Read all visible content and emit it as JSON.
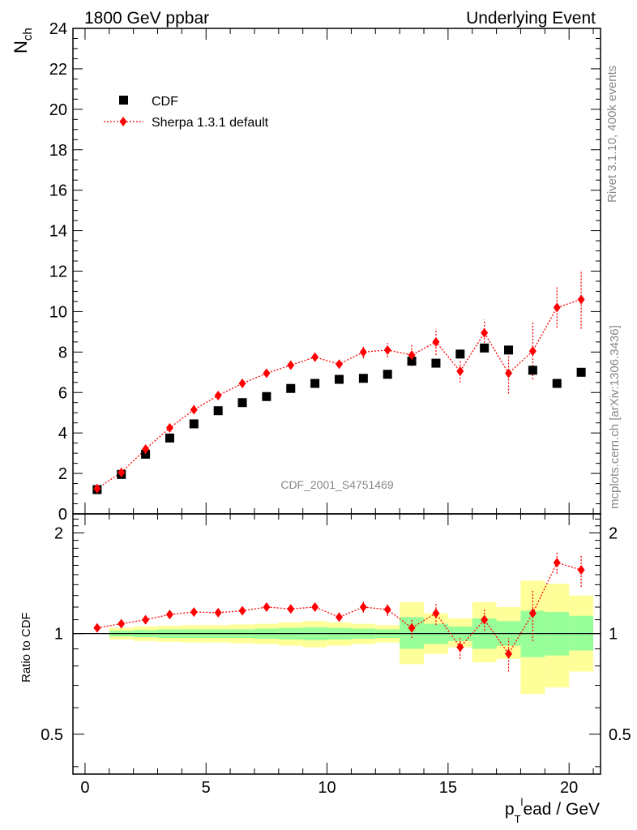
{
  "header": {
    "left": "1800 GeV ppbar",
    "right": "Underlying Event"
  },
  "side_text": {
    "upper": "Rivet 3.1.10,  400k events",
    "lower": "mcplots.cern.ch [arXiv:1306.3436]"
  },
  "watermark": "CDF_2001_S4751469",
  "colors": {
    "data": "#000000",
    "mc": "#ff0000",
    "band_inner": "#99ff99",
    "band_outer": "#ffff99"
  },
  "chart_data": [
    {
      "type": "scatter",
      "panel": "main",
      "ylabel": "N_ch",
      "xlim": [
        -0.5,
        21.3
      ],
      "ylim": [
        0,
        24
      ],
      "yticks": [
        0,
        2,
        4,
        6,
        8,
        10,
        12,
        14,
        16,
        18,
        20,
        22,
        24
      ],
      "legend_position": "top-left",
      "legend": [
        "CDF",
        "Sherpa 1.3.1 default"
      ],
      "x": [
        0.5,
        1.5,
        2.5,
        3.5,
        4.5,
        5.5,
        6.5,
        7.5,
        8.5,
        9.5,
        10.5,
        11.5,
        12.5,
        13.5,
        14.5,
        15.5,
        16.5,
        17.5,
        18.5,
        19.5,
        20.5
      ],
      "series": [
        {
          "name": "CDF",
          "marker": "square",
          "values": [
            1.2,
            1.95,
            2.95,
            3.75,
            4.45,
            5.1,
            5.5,
            5.8,
            6.2,
            6.45,
            6.65,
            6.7,
            6.9,
            7.55,
            7.45,
            7.9,
            8.2,
            8.1,
            7.1,
            6.45,
            7.0
          ]
        },
        {
          "name": "Sherpa 1.3.1 default",
          "marker": "diamond",
          "line": "dotted",
          "values": [
            1.25,
            2.05,
            3.2,
            4.25,
            5.15,
            5.85,
            6.45,
            6.95,
            7.35,
            7.75,
            7.4,
            8.0,
            8.1,
            7.85,
            8.5,
            7.05,
            8.95,
            6.95,
            8.05,
            10.2,
            10.6
          ],
          "errors": [
            0.05,
            0.1,
            0.1,
            0.1,
            0.1,
            0.1,
            0.1,
            0.1,
            0.15,
            0.15,
            0.2,
            0.3,
            0.35,
            0.55,
            0.65,
            0.55,
            0.65,
            1.0,
            1.4,
            1.0,
            1.45
          ]
        }
      ]
    },
    {
      "type": "scatter",
      "panel": "ratio",
      "xlabel": "p_T^lead / GeV",
      "ylabel": "Ratio to CDF",
      "xlim": [
        -0.5,
        21.3
      ],
      "ylim": [
        0.38,
        2.28
      ],
      "yscale": "log",
      "xticks": [
        0,
        5,
        10,
        15,
        20
      ],
      "yticks": [
        0.5,
        1,
        2
      ],
      "x": [
        0.5,
        1.5,
        2.5,
        3.5,
        4.5,
        5.5,
        6.5,
        7.5,
        8.5,
        9.5,
        10.5,
        11.5,
        12.5,
        13.5,
        14.5,
        15.5,
        16.5,
        17.5,
        18.5,
        19.5,
        20.5
      ],
      "bands": {
        "green_low": [
          1.0,
          0.98,
          0.975,
          0.97,
          0.97,
          0.97,
          0.97,
          0.965,
          0.96,
          0.955,
          0.96,
          0.965,
          0.97,
          0.9,
          0.93,
          0.95,
          0.9,
          0.92,
          0.85,
          0.86,
          0.89
        ],
        "green_high": [
          1.0,
          1.02,
          1.025,
          1.03,
          1.03,
          1.03,
          1.03,
          1.035,
          1.04,
          1.045,
          1.04,
          1.035,
          1.03,
          1.12,
          1.07,
          1.05,
          1.11,
          1.09,
          1.17,
          1.16,
          1.13
        ],
        "yellow_low": [
          1.0,
          0.96,
          0.95,
          0.945,
          0.94,
          0.94,
          0.935,
          0.93,
          0.92,
          0.91,
          0.92,
          0.93,
          0.94,
          0.81,
          0.87,
          0.91,
          0.82,
          0.84,
          0.66,
          0.69,
          0.77
        ],
        "yellow_high": [
          1.0,
          1.04,
          1.05,
          1.055,
          1.06,
          1.06,
          1.065,
          1.07,
          1.08,
          1.09,
          1.08,
          1.07,
          1.06,
          1.24,
          1.15,
          1.11,
          1.24,
          1.2,
          1.44,
          1.41,
          1.3
        ]
      },
      "series": [
        {
          "name": "Sherpa 1.3.1 default",
          "values": [
            1.04,
            1.07,
            1.1,
            1.14,
            1.16,
            1.155,
            1.17,
            1.2,
            1.185,
            1.2,
            1.12,
            1.2,
            1.18,
            1.04,
            1.15,
            0.91,
            1.1,
            0.87,
            1.15,
            1.63,
            1.55
          ],
          "errors": [
            0.01,
            0.02,
            0.02,
            0.02,
            0.02,
            0.02,
            0.02,
            0.02,
            0.025,
            0.025,
            0.03,
            0.045,
            0.05,
            0.07,
            0.09,
            0.07,
            0.08,
            0.1,
            0.2,
            0.12,
            0.17
          ]
        }
      ]
    }
  ]
}
